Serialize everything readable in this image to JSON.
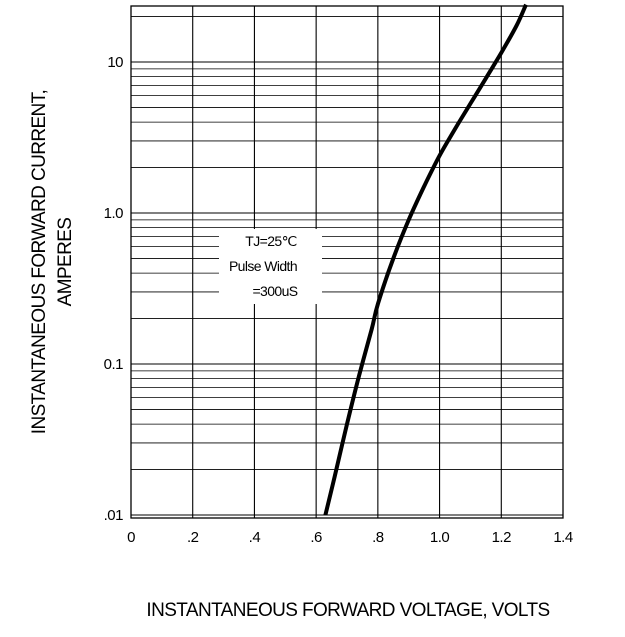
{
  "chart_data": {
    "type": "line",
    "title": "",
    "xlabel": "INSTANTANEOUS FORWARD VOLTAGE,  VOLTS",
    "ylabel_lines": [
      "INSTANTANEOUS FORWARD CURRENT,",
      "AMPERES"
    ],
    "x_scale": "linear",
    "y_scale": "log",
    "xlim": [
      0,
      1.4
    ],
    "ylim": [
      0.01,
      25
    ],
    "x_ticks": [
      0,
      0.2,
      0.4,
      0.6,
      0.8,
      1.0,
      1.2,
      1.4
    ],
    "x_tick_labels": [
      "0",
      ".2",
      ".4",
      ".6",
      ".8",
      "1.0",
      "1.2",
      "1.4"
    ],
    "y_ticks": [
      0.01,
      0.1,
      1,
      10
    ],
    "y_tick_labels": [
      ".01",
      "0.1",
      "1.0",
      "10"
    ],
    "grid": true,
    "annotation": {
      "lines": [
        "TJ=25℃",
        "Pulse Width",
        "=300uS"
      ]
    },
    "series": [
      {
        "x": [
          0.63,
          0.66,
          0.7,
          0.74,
          0.78,
          0.8,
          0.85,
          0.9,
          0.95,
          1.0,
          1.05,
          1.1,
          1.15,
          1.2,
          1.25,
          1.28
        ],
        "y": [
          0.01,
          0.018,
          0.04,
          0.085,
          0.17,
          0.25,
          0.5,
          0.9,
          1.5,
          2.4,
          3.6,
          5.3,
          7.8,
          11.5,
          17.5,
          24
        ]
      }
    ]
  }
}
